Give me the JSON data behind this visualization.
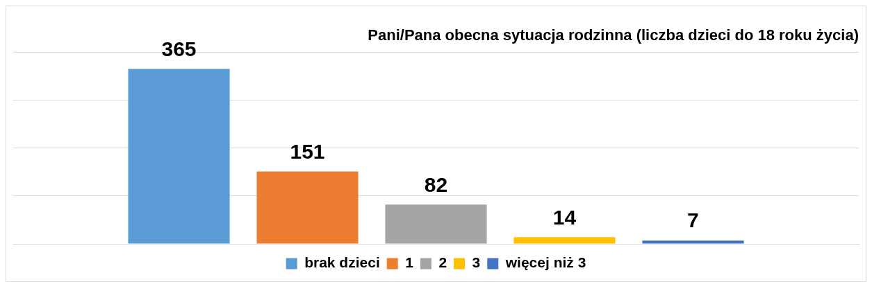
{
  "chart_data": {
    "type": "bar",
    "title": "Pani/Pana obecna sytuacja rodzinna (liczba dzieci do 18 roku życia)",
    "categories": [
      null
    ],
    "series": [
      {
        "name": "brak dzieci",
        "color": "#5b9bd5",
        "values": [
          365
        ]
      },
      {
        "name": "1",
        "color": "#ed7d31",
        "values": [
          151
        ]
      },
      {
        "name": "2",
        "color": "#a5a5a5",
        "values": [
          82
        ]
      },
      {
        "name": "3",
        "color": "#ffc000",
        "values": [
          14
        ]
      },
      {
        "name": "więcej niż 3",
        "color": "#4472c4",
        "values": [
          7
        ]
      }
    ],
    "ylim": [
      0,
      400
    ],
    "yticks": [
      0,
      100,
      200,
      300,
      400
    ],
    "grid": "y",
    "tick_labels": false,
    "legend": "bottom",
    "data_labels": true
  }
}
